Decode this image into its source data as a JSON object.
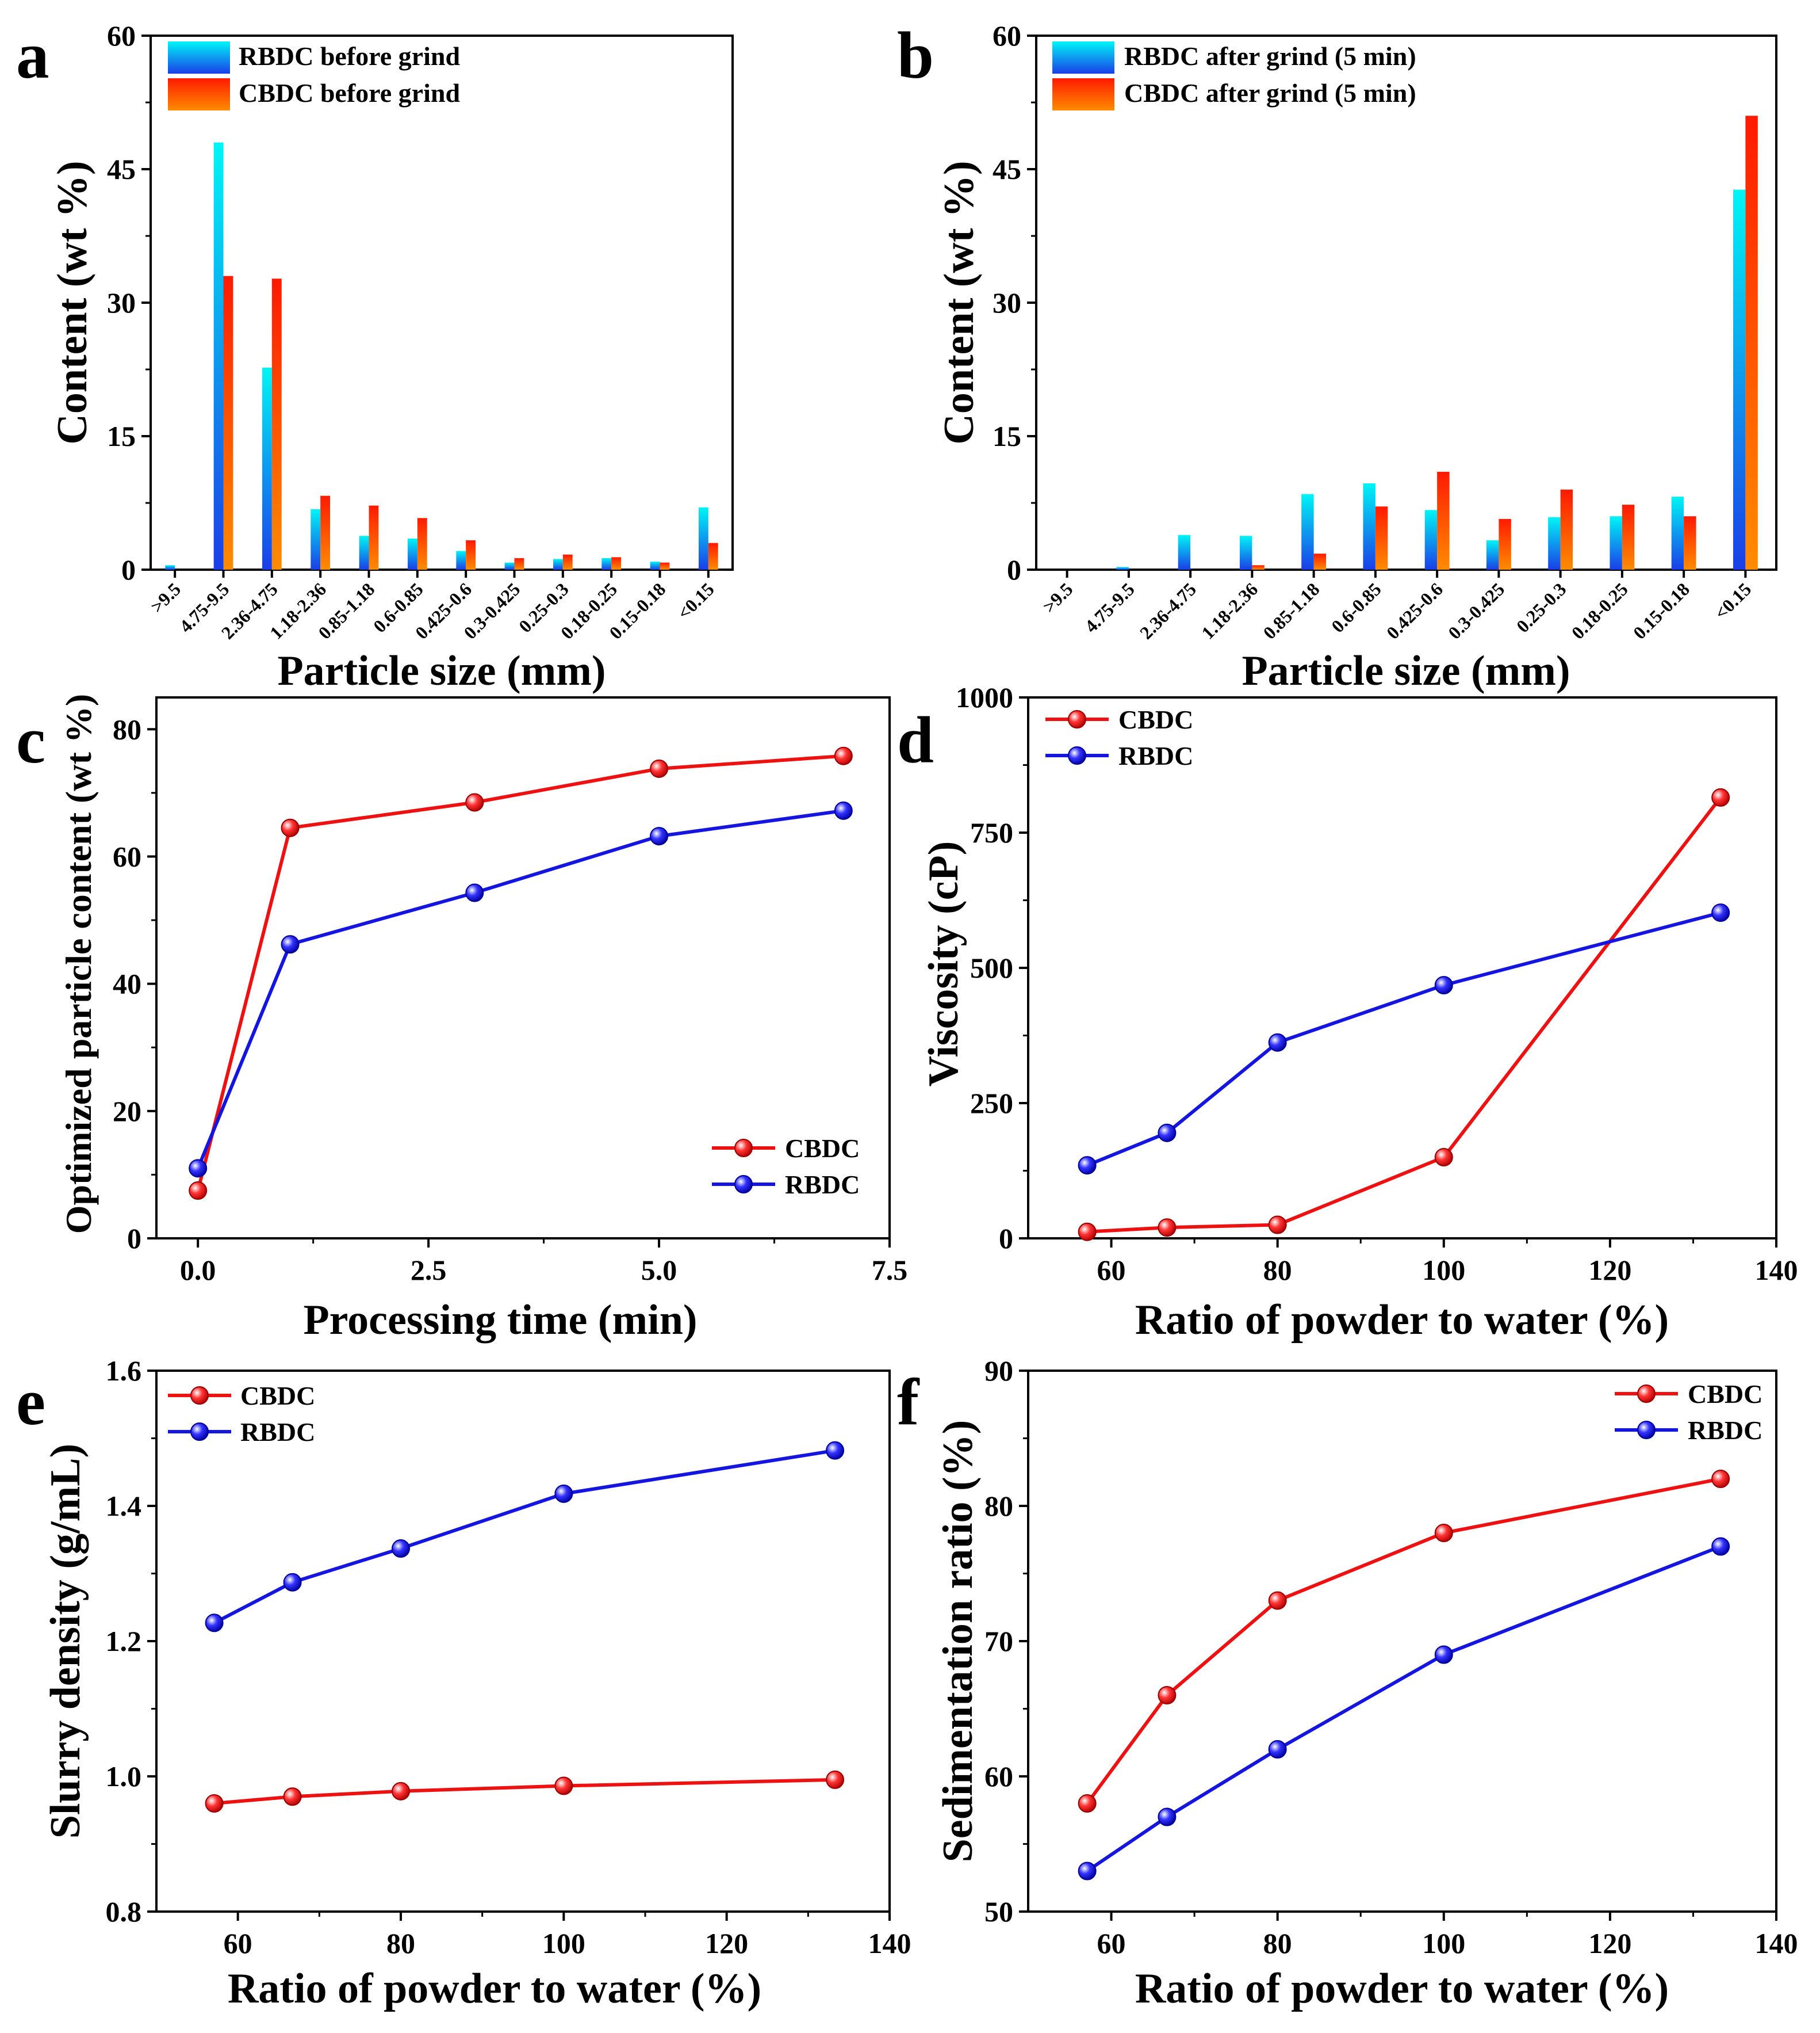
{
  "figure": {
    "panel_labels": [
      "a",
      "b",
      "c",
      "d",
      "e",
      "f"
    ]
  },
  "colors": {
    "rbdc_bar_top": "#00f5f5",
    "rbdc_bar_bottom": "#1a3ee8",
    "cbdc_bar_top": "#ff1a00",
    "cbdc_bar_bottom": "#ff8c00",
    "cbdc_line": "#ee1111",
    "rbdc_line": "#1515e0"
  },
  "chart_data": [
    {
      "id": "a",
      "type": "bar",
      "categories": [
        ">9.5",
        "4.75-9.5",
        "2.36-4.75",
        "1.18-2.36",
        "0.85-1.18",
        "0.6-0.85",
        "0.425-0.6",
        "0.3-0.425",
        "0.25-0.3",
        "0.18-0.25",
        "0.15-0.18",
        "<0.15"
      ],
      "series": [
        {
          "name": "RBDC before grind",
          "values": [
            0.5,
            48,
            22.7,
            6.8,
            3.8,
            3.5,
            2.1,
            0.8,
            1.2,
            1.3,
            0.9,
            7.0
          ]
        },
        {
          "name": "CBDC before grind",
          "values": [
            0,
            33,
            32.7,
            8.3,
            7.2,
            5.8,
            3.3,
            1.3,
            1.7,
            1.4,
            0.8,
            3.0
          ]
        }
      ],
      "xlabel": "Particle size (mm)",
      "ylabel": "Content (wt %)",
      "ylim": [
        0,
        60
      ],
      "yticks": [
        0,
        15,
        30,
        45,
        60
      ],
      "legend": "top-left"
    },
    {
      "id": "b",
      "type": "bar",
      "categories": [
        ">9.5",
        "4.75-9.5",
        "2.36-4.75",
        "1.18-2.36",
        "0.85-1.18",
        "0.6-0.85",
        "0.425-0.6",
        "0.3-0.425",
        "0.25-0.3",
        "0.18-0.25",
        "0.15-0.18",
        "<0.15"
      ],
      "series": [
        {
          "name": "RBDC after grind (5 min)",
          "values": [
            0,
            0.3,
            3.9,
            3.8,
            8.5,
            9.7,
            6.7,
            3.3,
            5.9,
            6.0,
            8.2,
            42.7
          ]
        },
        {
          "name": "CBDC after grind (5 min)",
          "values": [
            0,
            0,
            0,
            0.5,
            1.8,
            7.1,
            11.0,
            5.7,
            9.0,
            7.3,
            6.0,
            51.0
          ]
        }
      ],
      "xlabel": "Particle size (mm)",
      "ylabel": "Content (wt %)",
      "ylim": [
        0,
        60
      ],
      "yticks": [
        0,
        15,
        30,
        45,
        60
      ],
      "legend": "top-left"
    },
    {
      "id": "c",
      "type": "line",
      "xlabel": "Processing time (min)",
      "ylabel": "Optimized particle content (wt %)",
      "xlim": [
        -0.45,
        7.5
      ],
      "ylim": [
        0,
        85
      ],
      "xticks": [
        0,
        2.5,
        5,
        7.5
      ],
      "xtick_labels": [
        "0.0",
        "2.5",
        "5.0",
        "7.5"
      ],
      "yticks": [
        0,
        20,
        40,
        60,
        80
      ],
      "series": [
        {
          "name": "CBDC",
          "x": [
            0,
            1,
            3,
            5,
            7
          ],
          "y": [
            7.5,
            64.5,
            68.5,
            73.8,
            75.8
          ]
        },
        {
          "name": "RBDC",
          "x": [
            0,
            1,
            3,
            5,
            7
          ],
          "y": [
            11,
            46.2,
            54.3,
            63.2,
            67.2
          ]
        }
      ],
      "legend": "bottom-right"
    },
    {
      "id": "d",
      "type": "line",
      "xlabel": "Ratio of powder to water (%)",
      "ylabel": "Viscosity (cP)",
      "xlim": [
        50,
        140
      ],
      "ylim": [
        0,
        1000
      ],
      "xticks": [
        60,
        80,
        100,
        120,
        140
      ],
      "yticks": [
        0,
        250,
        500,
        750,
        1000
      ],
      "series": [
        {
          "name": "CBDC",
          "x": [
            57.1,
            66.7,
            80,
            100,
            133.3
          ],
          "y": [
            12,
            20,
            25,
            150,
            815
          ]
        },
        {
          "name": "RBDC",
          "x": [
            57.1,
            66.7,
            80,
            100,
            133.3
          ],
          "y": [
            135,
            195,
            362,
            468,
            602
          ]
        }
      ],
      "legend": "top-left"
    },
    {
      "id": "e",
      "type": "line",
      "xlabel": "Ratio of powder to water (%)",
      "ylabel": "Slurry density (g/mL)",
      "xlim": [
        50,
        140
      ],
      "ylim": [
        0.8,
        1.6
      ],
      "xticks": [
        60,
        80,
        100,
        120,
        140
      ],
      "yticks": [
        0.8,
        1.0,
        1.2,
        1.4,
        1.6
      ],
      "ytick_labels": [
        "0.8",
        "1.0",
        "1.2",
        "1.4",
        "1.6"
      ],
      "series": [
        {
          "name": "CBDC",
          "x": [
            57.1,
            66.7,
            80,
            100,
            133.3
          ],
          "y": [
            0.96,
            0.97,
            0.978,
            0.986,
            0.995
          ]
        },
        {
          "name": "RBDC",
          "x": [
            57.1,
            66.7,
            80,
            100,
            133.3
          ],
          "y": [
            1.227,
            1.287,
            1.337,
            1.418,
            1.482
          ]
        }
      ],
      "legend": "top-left"
    },
    {
      "id": "f",
      "type": "line",
      "xlabel": "Ratio of powder to water (%)",
      "ylabel": "Sedimentation ratio  (%)",
      "xlim": [
        50,
        140
      ],
      "ylim": [
        50,
        90
      ],
      "xticks": [
        60,
        80,
        100,
        120,
        140
      ],
      "yticks": [
        50,
        60,
        70,
        80,
        90
      ],
      "series": [
        {
          "name": "CBDC",
          "x": [
            57.1,
            66.7,
            80,
            100,
            133.3
          ],
          "y": [
            58,
            66,
            73,
            78,
            82
          ]
        },
        {
          "name": "RBDC",
          "x": [
            57.1,
            66.7,
            80,
            100,
            133.3
          ],
          "y": [
            53,
            57,
            62,
            69,
            77
          ]
        }
      ],
      "legend": "top-right"
    }
  ]
}
